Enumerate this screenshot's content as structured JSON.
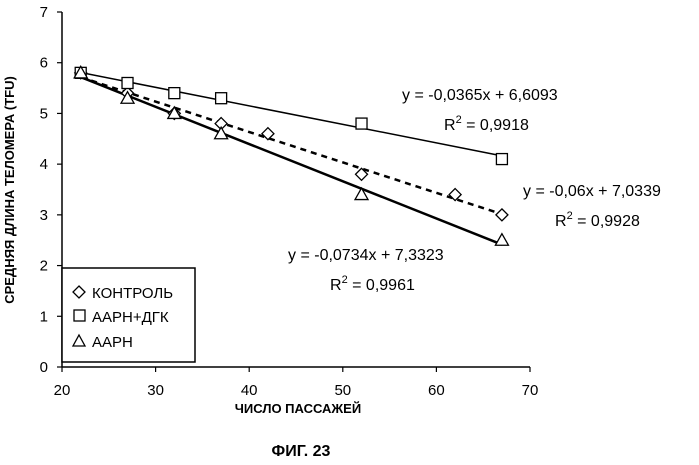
{
  "chart_data": {
    "type": "scatter",
    "xlabel": "ЧИСЛО ПАССАЖЕЙ",
    "ylabel": "СРЕДНЯЯ ДЛИНА ТЕЛОМЕРА (TFU)",
    "xlim": [
      20,
      70
    ],
    "ylim": [
      0,
      7
    ],
    "xticks": [
      "20",
      "30",
      "40",
      "50",
      "60",
      "70"
    ],
    "yticks": [
      "0",
      "1",
      "2",
      "3",
      "4",
      "5",
      "6",
      "7"
    ],
    "series": [
      {
        "name": "КОНТРОЛЬ",
        "marker": "diamond",
        "points": [
          [
            22,
            5.8
          ],
          [
            27,
            5.4
          ],
          [
            32,
            5.0
          ],
          [
            37,
            4.8
          ],
          [
            42,
            4.6
          ],
          [
            52,
            3.8
          ],
          [
            62,
            3.4
          ],
          [
            67,
            3.0
          ]
        ],
        "trendline": {
          "slope": -0.06,
          "intercept": 7.0339,
          "style": "dashed",
          "width": 2.5
        },
        "equation": "y = -0,06x + 7,0339",
        "r2_prefix": "R",
        "r2_sup": "2",
        "r2_value": " = 0,9928"
      },
      {
        "name": "AAPH+ДГК",
        "marker": "square",
        "points": [
          [
            22,
            5.8
          ],
          [
            27,
            5.6
          ],
          [
            32,
            5.4
          ],
          [
            37,
            5.3
          ],
          [
            52,
            4.8
          ],
          [
            67,
            4.1
          ]
        ],
        "trendline": {
          "slope": -0.0365,
          "intercept": 6.6093,
          "style": "solid",
          "width": 1.5
        },
        "equation": "y = -0,0365x + 6,6093",
        "r2_prefix": "R",
        "r2_sup": "2",
        "r2_value": " = 0,9918"
      },
      {
        "name": "AAPH",
        "marker": "triangle",
        "points": [
          [
            22,
            5.8
          ],
          [
            27,
            5.3
          ],
          [
            32,
            5.0
          ],
          [
            37,
            4.6
          ],
          [
            52,
            3.4
          ],
          [
            67,
            2.5
          ]
        ],
        "trendline": {
          "slope": -0.0734,
          "intercept": 7.3323,
          "style": "solid",
          "width": 2.5
        },
        "equation": "y = -0,0734x + 7,3323",
        "r2_prefix": "R",
        "r2_sup": "2",
        "r2_value": " = 0,9961"
      }
    ],
    "legend_position": "bottom-left",
    "caption": "ФИГ. 23"
  }
}
